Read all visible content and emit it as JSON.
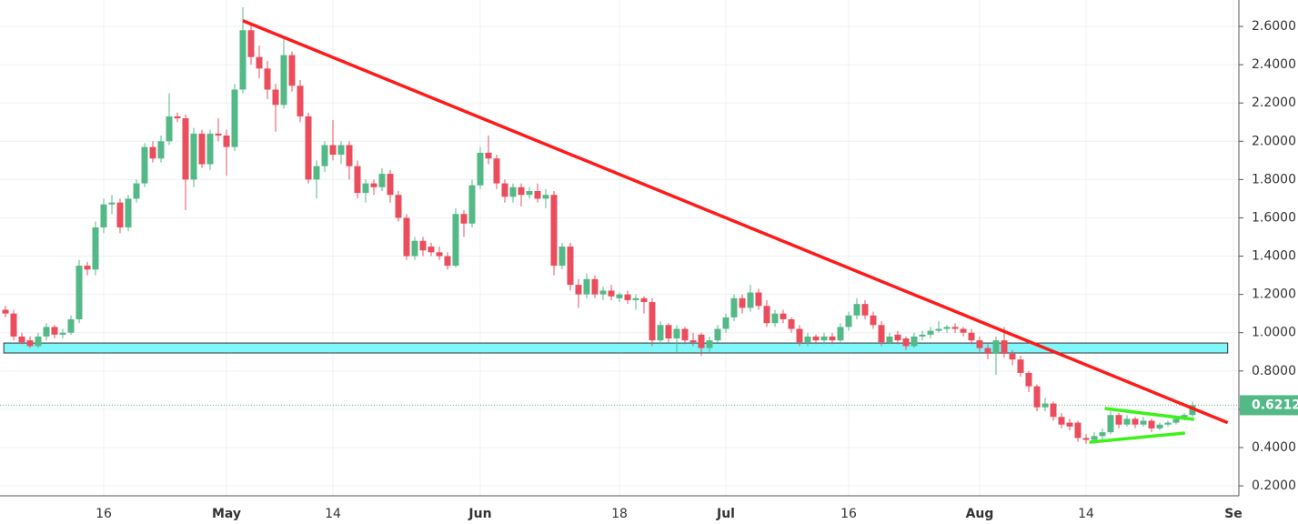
{
  "chart_data": {
    "type": "candlestick",
    "colors": {
      "up": "#53b987",
      "down": "#eb4d5c"
    },
    "grid": true,
    "categories": [
      null,
      null,
      null,
      null,
      null,
      null,
      null,
      null,
      null,
      null,
      null,
      null,
      "16",
      null,
      null,
      null,
      null,
      null,
      null,
      null,
      null,
      null,
      null,
      null,
      null,
      null,
      null,
      "May",
      null,
      null,
      null,
      null,
      null,
      null,
      null,
      null,
      null,
      null,
      null,
      null,
      "14",
      null,
      null,
      null,
      null,
      null,
      null,
      null,
      null,
      null,
      null,
      null,
      null,
      null,
      null,
      null,
      null,
      null,
      "Jun",
      null,
      null,
      null,
      null,
      null,
      null,
      null,
      null,
      null,
      null,
      null,
      null,
      null,
      null,
      null,
      null,
      "18",
      null,
      null,
      null,
      null,
      null,
      null,
      null,
      null,
      null,
      null,
      null,
      null,
      "Jul",
      null,
      null,
      null,
      null,
      null,
      null,
      null,
      null,
      null,
      null,
      null,
      null,
      null,
      null,
      "16",
      null,
      null,
      null,
      null,
      null,
      null,
      null,
      null,
      null,
      null,
      null,
      null,
      null,
      null,
      null,
      "Aug",
      null,
      null,
      null,
      null,
      null,
      null,
      null,
      null,
      null,
      null,
      null,
      null,
      "14",
      null,
      null,
      null,
      null,
      null,
      null,
      null,
      null,
      null,
      null,
      null,
      null,
      null,
      null,
      null,
      null,
      null,
      "Se"
    ],
    "candles": [
      [
        1.12,
        1.14,
        1.08,
        1.1
      ],
      [
        1.1,
        1.12,
        0.96,
        0.98
      ],
      [
        0.98,
        1.0,
        0.94,
        0.95
      ],
      [
        0.96,
        0.98,
        0.92,
        0.93
      ],
      [
        0.93,
        1.0,
        0.92,
        0.98
      ],
      [
        0.98,
        1.05,
        0.96,
        1.03
      ],
      [
        1.03,
        1.04,
        0.97,
        0.99
      ],
      [
        0.99,
        1.02,
        0.97,
        1.0
      ],
      [
        1.0,
        1.09,
        0.99,
        1.07
      ],
      [
        1.07,
        1.38,
        1.05,
        1.35
      ],
      [
        1.35,
        1.37,
        1.3,
        1.33
      ],
      [
        1.33,
        1.58,
        1.3,
        1.55
      ],
      [
        1.55,
        1.7,
        1.52,
        1.67
      ],
      [
        1.67,
        1.72,
        1.62,
        1.68
      ],
      [
        1.68,
        1.7,
        1.52,
        1.55
      ],
      [
        1.55,
        1.72,
        1.53,
        1.7
      ],
      [
        1.7,
        1.8,
        1.68,
        1.78
      ],
      [
        1.78,
        1.99,
        1.76,
        1.97
      ],
      [
        1.97,
        2.0,
        1.89,
        1.91
      ],
      [
        1.91,
        2.03,
        1.89,
        2.0
      ],
      [
        2.0,
        2.25,
        1.98,
        2.13
      ],
      [
        2.13,
        2.15,
        2.1,
        2.12
      ],
      [
        2.12,
        2.14,
        1.64,
        1.8
      ],
      [
        1.8,
        2.07,
        1.76,
        2.04
      ],
      [
        2.04,
        2.06,
        1.86,
        1.88
      ],
      [
        1.88,
        2.06,
        1.85,
        2.04
      ],
      [
        2.04,
        2.12,
        2.0,
        2.03
      ],
      [
        2.03,
        2.06,
        1.82,
        1.97
      ],
      [
        1.97,
        2.3,
        1.95,
        2.27
      ],
      [
        2.27,
        2.7,
        2.25,
        2.58
      ],
      [
        2.58,
        2.62,
        2.4,
        2.44
      ],
      [
        2.44,
        2.5,
        2.33,
        2.38
      ],
      [
        2.38,
        2.42,
        2.22,
        2.27
      ],
      [
        2.27,
        2.3,
        2.05,
        2.19
      ],
      [
        2.19,
        2.55,
        2.17,
        2.45
      ],
      [
        2.45,
        2.47,
        2.26,
        2.29
      ],
      [
        2.29,
        2.32,
        2.1,
        2.13
      ],
      [
        2.13,
        2.15,
        1.78,
        1.8
      ],
      [
        1.8,
        1.9,
        1.7,
        1.87
      ],
      [
        1.87,
        2.0,
        1.84,
        1.98
      ],
      [
        1.98,
        2.11,
        1.9,
        1.93
      ],
      [
        1.93,
        2.0,
        1.88,
        1.98
      ],
      [
        1.98,
        2.0,
        1.8,
        1.87
      ],
      [
        1.87,
        1.9,
        1.7,
        1.73
      ],
      [
        1.73,
        1.8,
        1.68,
        1.78
      ],
      [
        1.78,
        1.8,
        1.72,
        1.76
      ],
      [
        1.76,
        1.86,
        1.74,
        1.83
      ],
      [
        1.83,
        1.85,
        1.68,
        1.72
      ],
      [
        1.72,
        1.74,
        1.58,
        1.6
      ],
      [
        1.6,
        1.62,
        1.38,
        1.4
      ],
      [
        1.4,
        1.5,
        1.38,
        1.48
      ],
      [
        1.48,
        1.5,
        1.4,
        1.43
      ],
      [
        1.45,
        1.47,
        1.4,
        1.42
      ],
      [
        1.42,
        1.45,
        1.38,
        1.4
      ],
      [
        1.4,
        1.42,
        1.33,
        1.35
      ],
      [
        1.35,
        1.65,
        1.34,
        1.62
      ],
      [
        1.62,
        1.64,
        1.5,
        1.57
      ],
      [
        1.57,
        1.8,
        1.55,
        1.77
      ],
      [
        1.77,
        1.97,
        1.75,
        1.94
      ],
      [
        1.94,
        2.03,
        1.88,
        1.91
      ],
      [
        1.91,
        1.93,
        1.75,
        1.78
      ],
      [
        1.78,
        1.8,
        1.68,
        1.71
      ],
      [
        1.71,
        1.78,
        1.68,
        1.76
      ],
      [
        1.76,
        1.78,
        1.66,
        1.72
      ],
      [
        1.72,
        1.76,
        1.7,
        1.74
      ],
      [
        1.74,
        1.78,
        1.68,
        1.7
      ],
      [
        1.7,
        1.75,
        1.65,
        1.72
      ],
      [
        1.72,
        1.74,
        1.3,
        1.35
      ],
      [
        1.35,
        1.47,
        1.33,
        1.45
      ],
      [
        1.45,
        1.47,
        1.22,
        1.25
      ],
      [
        1.25,
        1.28,
        1.13,
        1.2
      ],
      [
        1.2,
        1.31,
        1.18,
        1.28
      ],
      [
        1.28,
        1.3,
        1.18,
        1.2
      ],
      [
        1.2,
        1.24,
        1.17,
        1.22
      ],
      [
        1.22,
        1.25,
        1.17,
        1.19
      ],
      [
        1.18,
        1.21,
        1.16,
        1.2
      ],
      [
        1.2,
        1.22,
        1.15,
        1.17
      ],
      [
        1.17,
        1.2,
        1.12,
        1.18
      ],
      [
        1.18,
        1.19,
        1.1,
        1.16
      ],
      [
        1.16,
        1.18,
        0.93,
        0.96
      ],
      [
        0.96,
        1.06,
        0.94,
        1.04
      ],
      [
        1.04,
        1.05,
        0.95,
        0.97
      ],
      [
        0.97,
        1.04,
        0.9,
        1.02
      ],
      [
        1.02,
        1.03,
        0.94,
        0.96
      ],
      [
        0.96,
        1.0,
        0.93,
        0.95
      ],
      [
        0.99,
        1.0,
        0.88,
        0.92
      ],
      [
        0.92,
        0.98,
        0.9,
        0.96
      ],
      [
        0.96,
        1.04,
        0.95,
        1.02
      ],
      [
        1.02,
        1.1,
        1.0,
        1.08
      ],
      [
        1.08,
        1.2,
        1.06,
        1.18
      ],
      [
        1.18,
        1.2,
        1.1,
        1.13
      ],
      [
        1.13,
        1.25,
        1.11,
        1.21
      ],
      [
        1.21,
        1.23,
        1.12,
        1.14
      ],
      [
        1.14,
        1.17,
        1.03,
        1.05
      ],
      [
        1.05,
        1.12,
        1.03,
        1.1
      ],
      [
        1.1,
        1.12,
        1.05,
        1.07
      ],
      [
        1.07,
        1.08,
        1.0,
        1.02
      ],
      [
        1.02,
        1.04,
        0.93,
        0.95
      ],
      [
        0.95,
        1.0,
        0.93,
        0.98
      ],
      [
        0.98,
        0.99,
        0.94,
        0.96
      ],
      [
        0.96,
        1.0,
        0.94,
        0.98
      ],
      [
        0.98,
        1.0,
        0.94,
        0.96
      ],
      [
        0.96,
        1.05,
        0.95,
        1.03
      ],
      [
        1.03,
        1.11,
        1.01,
        1.09
      ],
      [
        1.09,
        1.18,
        1.07,
        1.15
      ],
      [
        1.15,
        1.17,
        1.07,
        1.09
      ],
      [
        1.09,
        1.11,
        1.02,
        1.04
      ],
      [
        1.04,
        1.06,
        0.93,
        0.95
      ],
      [
        0.95,
        1.0,
        0.94,
        0.98
      ],
      [
        0.99,
        1.01,
        0.94,
        0.96
      ],
      [
        0.97,
        0.98,
        0.91,
        0.93
      ],
      [
        0.93,
        1.0,
        0.92,
        0.98
      ],
      [
        0.98,
        1.01,
        0.96,
        0.99
      ],
      [
        0.99,
        1.03,
        0.97,
        1.01
      ],
      [
        1.01,
        1.06,
        1.0,
        1.02
      ],
      [
        1.02,
        1.04,
        1.0,
        1.03
      ],
      [
        1.03,
        1.05,
        1.0,
        1.02
      ],
      [
        1.02,
        1.03,
        0.98,
        1.0
      ],
      [
        1.0,
        1.02,
        0.94,
        0.96
      ],
      [
        0.96,
        0.98,
        0.9,
        0.92
      ],
      [
        0.92,
        0.94,
        0.86,
        0.89
      ],
      [
        0.89,
        0.98,
        0.78,
        0.96
      ],
      [
        0.96,
        1.03,
        0.87,
        0.89
      ],
      [
        0.89,
        0.91,
        0.83,
        0.86
      ],
      [
        0.86,
        0.88,
        0.77,
        0.79
      ],
      [
        0.79,
        0.8,
        0.69,
        0.72
      ],
      [
        0.72,
        0.73,
        0.59,
        0.61
      ],
      [
        0.61,
        0.66,
        0.59,
        0.63
      ],
      [
        0.63,
        0.64,
        0.54,
        0.56
      ],
      [
        0.56,
        0.58,
        0.5,
        0.52
      ],
      [
        0.53,
        0.55,
        0.49,
        0.51
      ],
      [
        0.53,
        0.54,
        0.43,
        0.45
      ],
      [
        0.45,
        0.47,
        0.42,
        0.44
      ],
      [
        0.44,
        0.48,
        0.42,
        0.46
      ],
      [
        0.46,
        0.5,
        0.44,
        0.48
      ],
      [
        0.48,
        0.59,
        0.47,
        0.57
      ],
      [
        0.57,
        0.58,
        0.5,
        0.52
      ],
      [
        0.52,
        0.57,
        0.51,
        0.55
      ],
      [
        0.55,
        0.56,
        0.5,
        0.52
      ],
      [
        0.52,
        0.56,
        0.51,
        0.54
      ],
      [
        0.54,
        0.55,
        0.48,
        0.5
      ],
      [
        0.5,
        0.53,
        0.49,
        0.52
      ],
      [
        0.52,
        0.54,
        0.51,
        0.53
      ],
      [
        0.53,
        0.56,
        0.52,
        0.55
      ],
      [
        0.55,
        0.58,
        0.54,
        0.57
      ],
      [
        0.57,
        0.64,
        0.56,
        0.6212
      ],
      null,
      null,
      null,
      null,
      null
    ],
    "ylim": [
      0.148,
      2.738
    ],
    "yticks": [
      {
        "value": 0.2,
        "label": "0.2000"
      },
      {
        "value": 0.4,
        "label": "0.4000"
      },
      {
        "value": 0.6,
        "label": "0.6000"
      },
      {
        "value": 0.8,
        "label": "0.8000"
      },
      {
        "value": 1.0,
        "label": "1.0000"
      },
      {
        "value": 1.2,
        "label": "1.2000"
      },
      {
        "value": 1.4,
        "label": "1.4000"
      },
      {
        "value": 1.6,
        "label": "1.6000"
      },
      {
        "value": 1.8,
        "label": "1.8000"
      },
      {
        "value": 2.0,
        "label": "2.0000"
      },
      {
        "value": 2.2,
        "label": "2.2000"
      },
      {
        "value": 2.4,
        "label": "2.4000"
      },
      {
        "value": 2.6,
        "label": "2.6000"
      }
    ],
    "zone": {
      "color": "#80f8fb",
      "range": [
        0.894,
        0.946
      ],
      "x": [
        -0.2,
        149.3
      ]
    },
    "trendlines": [
      {
        "color": "#ff1a1a",
        "points": [
          [
            29,
            2.63
          ],
          [
            149.3,
            0.53
          ]
        ]
      },
      {
        "color": "#3cf21a",
        "points": [
          [
            134.3,
            0.604
          ],
          [
            145.2,
            0.547
          ]
        ]
      },
      {
        "color": "#3cf21a",
        "points": [
          [
            132.4,
            0.428
          ],
          [
            144.1,
            0.476
          ]
        ]
      }
    ],
    "price_line_color": "#53b987"
  }
}
